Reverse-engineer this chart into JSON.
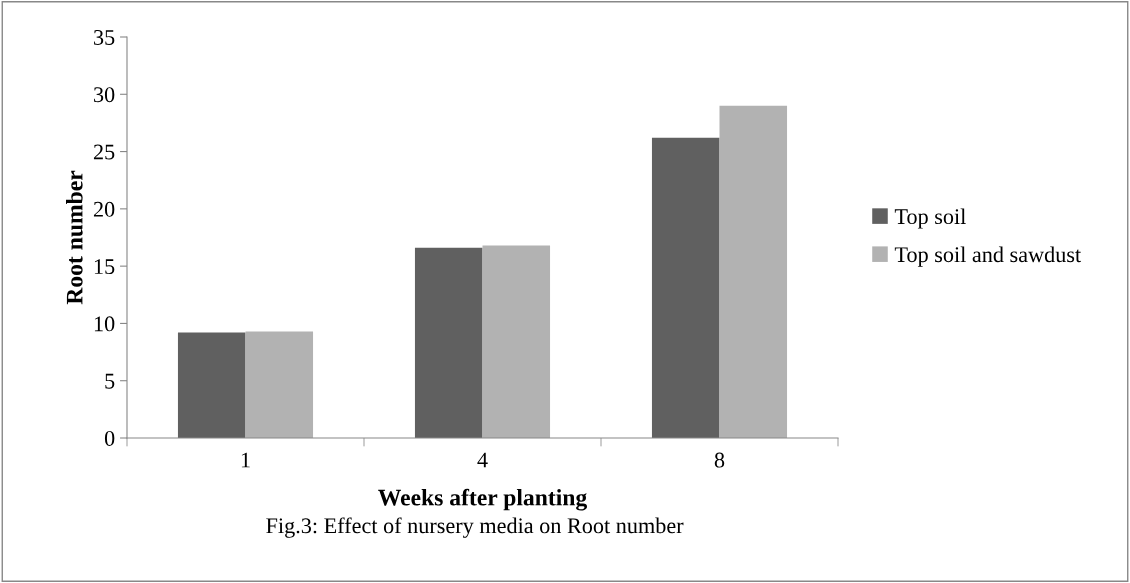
{
  "chart_data": {
    "type": "bar",
    "xlabel": "Weeks after planting",
    "ylabel": "Root number",
    "categories": [
      "1",
      "4",
      "8"
    ],
    "series": [
      {
        "name": "Top soil",
        "color": "#606060",
        "values": [
          9.2,
          16.6,
          26.2
        ]
      },
      {
        "name": "Top soil and sawdust",
        "color": "#b2b2b2",
        "values": [
          9.3,
          16.8,
          29.0
        ]
      }
    ],
    "ylim": [
      0,
      35
    ],
    "yticks": [
      0,
      5,
      10,
      15,
      20,
      25,
      30,
      35
    ],
    "grid": false,
    "legend": "right",
    "annotations": [
      "Fig.3: Effect of nursery media on Root number"
    ]
  }
}
